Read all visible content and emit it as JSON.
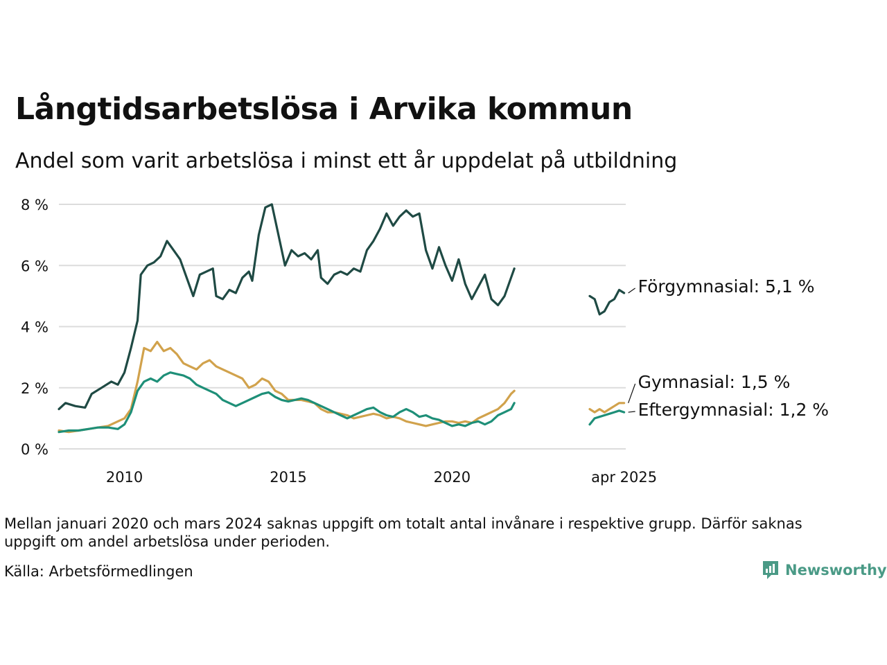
{
  "title": "Långtidsarbetslösa i Arvika kommun",
  "subtitle": "Andel som varit arbetslösa i minst ett år uppdelat på utbildning",
  "note": "Mellan januari 2020 och mars 2024 saknas uppgift om totalt antal invånare i respektive grupp. Därför saknas uppgift om andel arbetslösa under perioden.",
  "source": "Källa: Arbetsförmedlingen",
  "brand": "Newsworthy",
  "chart_data": {
    "type": "line",
    "title": "Långtidsarbetslösa i Arvika kommun",
    "subtitle": "Andel som varit arbetslösa i minst ett år uppdelat på utbildning",
    "x_ticks": [
      {
        "x": 2010,
        "label": "2010"
      },
      {
        "x": 2015,
        "label": "2015"
      },
      {
        "x": 2020,
        "label": "2020"
      },
      {
        "x": 2025.25,
        "label": "apr 2025"
      }
    ],
    "y_ticks": [
      {
        "y": 0,
        "label": "0 %"
      },
      {
        "y": 2,
        "label": "2 %"
      },
      {
        "y": 4,
        "label": "4 %"
      },
      {
        "y": 6,
        "label": "6 %"
      },
      {
        "y": 8,
        "label": "8 %"
      }
    ],
    "xlim": [
      2008.0,
      2025.3
    ],
    "ylim": [
      0,
      8
    ],
    "grid": true,
    "series": [
      {
        "name": "Förgymnasial",
        "end_label": "Förgymnasial: 5,1 %",
        "color": "#1f4a44",
        "segments": [
          [
            [
              2008.0,
              1.3
            ],
            [
              2008.2,
              1.5
            ],
            [
              2008.5,
              1.4
            ],
            [
              2008.8,
              1.35
            ],
            [
              2009.0,
              1.8
            ],
            [
              2009.3,
              2.0
            ],
            [
              2009.6,
              2.2
            ],
            [
              2009.8,
              2.1
            ],
            [
              2010.0,
              2.5
            ],
            [
              2010.2,
              3.3
            ],
            [
              2010.4,
              4.2
            ],
            [
              2010.5,
              5.7
            ],
            [
              2010.7,
              6.0
            ],
            [
              2010.9,
              6.1
            ],
            [
              2011.1,
              6.3
            ],
            [
              2011.3,
              6.8
            ],
            [
              2011.5,
              6.5
            ],
            [
              2011.7,
              6.2
            ],
            [
              2011.9,
              5.6
            ],
            [
              2012.1,
              5.0
            ],
            [
              2012.3,
              5.7
            ],
            [
              2012.5,
              5.8
            ],
            [
              2012.7,
              5.9
            ],
            [
              2012.8,
              5.0
            ],
            [
              2013.0,
              4.9
            ],
            [
              2013.2,
              5.2
            ],
            [
              2013.4,
              5.1
            ],
            [
              2013.6,
              5.6
            ],
            [
              2013.8,
              5.8
            ],
            [
              2013.9,
              5.5
            ],
            [
              2014.1,
              7.0
            ],
            [
              2014.3,
              7.9
            ],
            [
              2014.5,
              8.0
            ],
            [
              2014.7,
              7.0
            ],
            [
              2014.9,
              6.0
            ],
            [
              2015.1,
              6.5
            ],
            [
              2015.3,
              6.3
            ],
            [
              2015.5,
              6.4
            ],
            [
              2015.7,
              6.2
            ],
            [
              2015.9,
              6.5
            ],
            [
              2016.0,
              5.6
            ],
            [
              2016.2,
              5.4
            ],
            [
              2016.4,
              5.7
            ],
            [
              2016.6,
              5.8
            ],
            [
              2016.8,
              5.7
            ],
            [
              2017.0,
              5.9
            ],
            [
              2017.2,
              5.8
            ],
            [
              2017.4,
              6.5
            ],
            [
              2017.6,
              6.8
            ],
            [
              2017.8,
              7.2
            ],
            [
              2018.0,
              7.7
            ],
            [
              2018.2,
              7.3
            ],
            [
              2018.4,
              7.6
            ],
            [
              2018.6,
              7.8
            ],
            [
              2018.8,
              7.6
            ],
            [
              2019.0,
              7.7
            ],
            [
              2019.2,
              6.5
            ],
            [
              2019.4,
              5.9
            ],
            [
              2019.6,
              6.6
            ],
            [
              2019.8,
              6.0
            ],
            [
              2020.0,
              5.5
            ],
            [
              2020.2,
              6.2
            ],
            [
              2020.4,
              5.4
            ],
            [
              2020.6,
              4.9
            ],
            [
              2020.8,
              5.3
            ],
            [
              2021.0,
              5.7
            ],
            [
              2021.2,
              4.9
            ],
            [
              2021.4,
              4.7
            ],
            [
              2021.6,
              5.0
            ],
            [
              2021.8,
              5.6
            ],
            [
              2021.9,
              5.9
            ]
          ],
          [
            [
              2024.2,
              5.0
            ],
            [
              2024.35,
              4.9
            ],
            [
              2024.5,
              4.4
            ],
            [
              2024.65,
              4.5
            ],
            [
              2024.8,
              4.8
            ],
            [
              2024.95,
              4.9
            ],
            [
              2025.1,
              5.2
            ],
            [
              2025.25,
              5.1
            ]
          ]
        ]
      },
      {
        "name": "Gymnasial",
        "end_label": "Gymnasial: 1,5 %",
        "color": "#d1a24c",
        "segments": [
          [
            [
              2008.0,
              0.6
            ],
            [
              2008.3,
              0.55
            ],
            [
              2008.6,
              0.6
            ],
            [
              2008.9,
              0.65
            ],
            [
              2009.2,
              0.7
            ],
            [
              2009.5,
              0.75
            ],
            [
              2009.8,
              0.9
            ],
            [
              2010.0,
              1.0
            ],
            [
              2010.2,
              1.3
            ],
            [
              2010.4,
              2.2
            ],
            [
              2010.6,
              3.3
            ],
            [
              2010.8,
              3.2
            ],
            [
              2011.0,
              3.5
            ],
            [
              2011.2,
              3.2
            ],
            [
              2011.4,
              3.3
            ],
            [
              2011.6,
              3.1
            ],
            [
              2011.8,
              2.8
            ],
            [
              2012.0,
              2.7
            ],
            [
              2012.2,
              2.6
            ],
            [
              2012.4,
              2.8
            ],
            [
              2012.6,
              2.9
            ],
            [
              2012.8,
              2.7
            ],
            [
              2013.0,
              2.6
            ],
            [
              2013.2,
              2.5
            ],
            [
              2013.4,
              2.4
            ],
            [
              2013.6,
              2.3
            ],
            [
              2013.8,
              2.0
            ],
            [
              2014.0,
              2.1
            ],
            [
              2014.2,
              2.3
            ],
            [
              2014.4,
              2.2
            ],
            [
              2014.6,
              1.9
            ],
            [
              2014.8,
              1.8
            ],
            [
              2015.0,
              1.6
            ],
            [
              2015.2,
              1.6
            ],
            [
              2015.4,
              1.6
            ],
            [
              2015.6,
              1.55
            ],
            [
              2015.8,
              1.5
            ],
            [
              2016.0,
              1.3
            ],
            [
              2016.2,
              1.2
            ],
            [
              2016.4,
              1.2
            ],
            [
              2016.6,
              1.15
            ],
            [
              2016.8,
              1.1
            ],
            [
              2017.0,
              1.0
            ],
            [
              2017.2,
              1.05
            ],
            [
              2017.4,
              1.1
            ],
            [
              2017.6,
              1.15
            ],
            [
              2017.8,
              1.1
            ],
            [
              2018.0,
              1.0
            ],
            [
              2018.2,
              1.05
            ],
            [
              2018.4,
              1.0
            ],
            [
              2018.6,
              0.9
            ],
            [
              2018.8,
              0.85
            ],
            [
              2019.0,
              0.8
            ],
            [
              2019.2,
              0.75
            ],
            [
              2019.4,
              0.8
            ],
            [
              2019.6,
              0.85
            ],
            [
              2019.8,
              0.9
            ],
            [
              2020.0,
              0.9
            ],
            [
              2020.2,
              0.85
            ],
            [
              2020.4,
              0.9
            ],
            [
              2020.6,
              0.85
            ],
            [
              2020.8,
              1.0
            ],
            [
              2021.0,
              1.1
            ],
            [
              2021.2,
              1.2
            ],
            [
              2021.4,
              1.3
            ],
            [
              2021.6,
              1.5
            ],
            [
              2021.8,
              1.8
            ],
            [
              2021.9,
              1.9
            ]
          ],
          [
            [
              2024.2,
              1.3
            ],
            [
              2024.35,
              1.2
            ],
            [
              2024.5,
              1.3
            ],
            [
              2024.65,
              1.2
            ],
            [
              2024.8,
              1.3
            ],
            [
              2024.95,
              1.4
            ],
            [
              2025.1,
              1.5
            ],
            [
              2025.25,
              1.5
            ]
          ]
        ]
      },
      {
        "name": "Eftergymnasial",
        "end_label": "Eftergymnasial: 1,2 %",
        "color": "#1e8f78",
        "segments": [
          [
            [
              2008.0,
              0.55
            ],
            [
              2008.3,
              0.6
            ],
            [
              2008.6,
              0.6
            ],
            [
              2008.9,
              0.65
            ],
            [
              2009.2,
              0.7
            ],
            [
              2009.5,
              0.7
            ],
            [
              2009.8,
              0.65
            ],
            [
              2010.0,
              0.8
            ],
            [
              2010.2,
              1.2
            ],
            [
              2010.4,
              1.9
            ],
            [
              2010.6,
              2.2
            ],
            [
              2010.8,
              2.3
            ],
            [
              2011.0,
              2.2
            ],
            [
              2011.2,
              2.4
            ],
            [
              2011.4,
              2.5
            ],
            [
              2011.6,
              2.45
            ],
            [
              2011.8,
              2.4
            ],
            [
              2012.0,
              2.3
            ],
            [
              2012.2,
              2.1
            ],
            [
              2012.4,
              2.0
            ],
            [
              2012.6,
              1.9
            ],
            [
              2012.8,
              1.8
            ],
            [
              2013.0,
              1.6
            ],
            [
              2013.2,
              1.5
            ],
            [
              2013.4,
              1.4
            ],
            [
              2013.6,
              1.5
            ],
            [
              2013.8,
              1.6
            ],
            [
              2014.0,
              1.7
            ],
            [
              2014.2,
              1.8
            ],
            [
              2014.4,
              1.85
            ],
            [
              2014.6,
              1.7
            ],
            [
              2014.8,
              1.6
            ],
            [
              2015.0,
              1.55
            ],
            [
              2015.2,
              1.6
            ],
            [
              2015.4,
              1.65
            ],
            [
              2015.6,
              1.6
            ],
            [
              2015.8,
              1.5
            ],
            [
              2016.0,
              1.4
            ],
            [
              2016.2,
              1.3
            ],
            [
              2016.4,
              1.2
            ],
            [
              2016.6,
              1.1
            ],
            [
              2016.8,
              1.0
            ],
            [
              2017.0,
              1.1
            ],
            [
              2017.2,
              1.2
            ],
            [
              2017.4,
              1.3
            ],
            [
              2017.6,
              1.35
            ],
            [
              2017.8,
              1.2
            ],
            [
              2018.0,
              1.1
            ],
            [
              2018.2,
              1.05
            ],
            [
              2018.4,
              1.2
            ],
            [
              2018.6,
              1.3
            ],
            [
              2018.8,
              1.2
            ],
            [
              2019.0,
              1.05
            ],
            [
              2019.2,
              1.1
            ],
            [
              2019.4,
              1.0
            ],
            [
              2019.6,
              0.95
            ],
            [
              2019.8,
              0.85
            ],
            [
              2020.0,
              0.75
            ],
            [
              2020.2,
              0.8
            ],
            [
              2020.4,
              0.75
            ],
            [
              2020.6,
              0.85
            ],
            [
              2020.8,
              0.9
            ],
            [
              2021.0,
              0.8
            ],
            [
              2021.2,
              0.9
            ],
            [
              2021.4,
              1.1
            ],
            [
              2021.6,
              1.2
            ],
            [
              2021.8,
              1.3
            ],
            [
              2021.9,
              1.5
            ]
          ],
          [
            [
              2024.2,
              0.8
            ],
            [
              2024.35,
              1.0
            ],
            [
              2024.5,
              1.05
            ],
            [
              2024.65,
              1.1
            ],
            [
              2024.8,
              1.15
            ],
            [
              2024.95,
              1.2
            ],
            [
              2025.1,
              1.25
            ],
            [
              2025.25,
              1.2
            ]
          ]
        ]
      }
    ]
  }
}
